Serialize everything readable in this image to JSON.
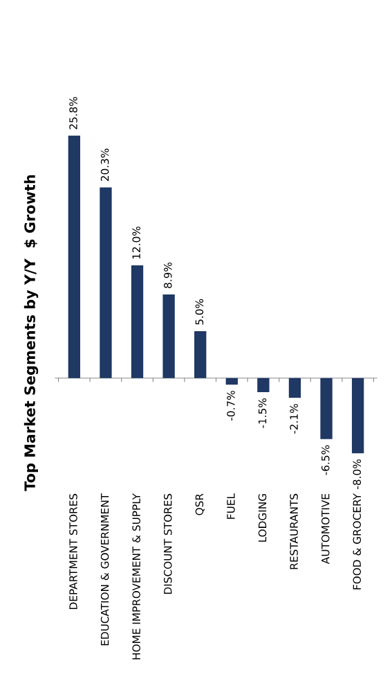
{
  "chart_data": {
    "type": "bar",
    "title": "Top Market Segments by Y/Y  $ Growth",
    "categories": [
      "DEPARTMENT STORES",
      "EDUCATION & GOVERNMENT",
      "HOME IMPROVEMENT & SUPPLY",
      "DISCOUNT STORES",
      "QSR",
      "FUEL",
      "LODGING",
      "RESTAURANTS",
      "AUTOMOTIVE",
      "FOOD & GROCERY"
    ],
    "values": [
      25.8,
      20.3,
      12.0,
      8.9,
      5.0,
      -0.7,
      -1.5,
      -2.1,
      -6.5,
      -8.0
    ],
    "value_labels": [
      "25.8%",
      "20.3%",
      "12.0%",
      "8.9%",
      "5.0%",
      "-0.7%",
      "-1.5%",
      "-2.1%",
      "-6.5%",
      "-8.0%"
    ],
    "color": "#1f3864",
    "grid": false,
    "legend": false
  }
}
